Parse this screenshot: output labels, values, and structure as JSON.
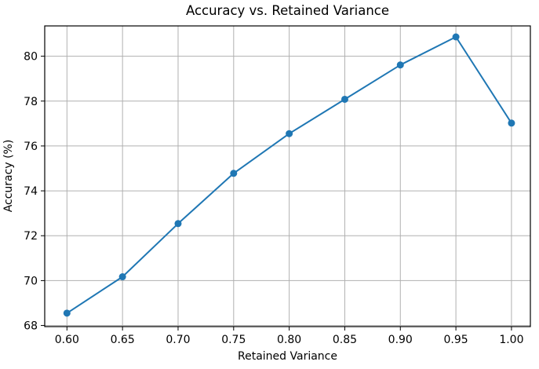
{
  "chart_data": {
    "type": "line",
    "title": "Accuracy vs. Retained Variance",
    "xlabel": "Retained Variance",
    "ylabel": "Accuracy (%)",
    "x": [
      0.6,
      0.65,
      0.7,
      0.75,
      0.8,
      0.85,
      0.9,
      0.95,
      1.0
    ],
    "y": [
      68.55,
      70.17,
      72.54,
      74.78,
      76.55,
      78.08,
      79.61,
      80.86,
      77.02
    ],
    "xticks": [
      0.6,
      0.65,
      0.7,
      0.75,
      0.8,
      0.85,
      0.9,
      0.95,
      1.0
    ],
    "xtick_labels": [
      "0.60",
      "0.65",
      "0.70",
      "0.75",
      "0.80",
      "0.85",
      "0.90",
      "0.95",
      "1.00"
    ],
    "yticks": [
      68,
      70,
      72,
      74,
      76,
      78,
      80
    ],
    "ytick_labels": [
      "68",
      "70",
      "72",
      "74",
      "76",
      "78",
      "80"
    ],
    "xlim": [
      0.58,
      1.017
    ],
    "ylim": [
      67.95,
      81.35
    ],
    "grid": true,
    "legend": false,
    "marker": "o",
    "colors": {
      "line": "#1f77b4",
      "grid": "#b0b0b0",
      "spine": "#000000",
      "text": "#000000",
      "background": "#ffffff"
    }
  }
}
